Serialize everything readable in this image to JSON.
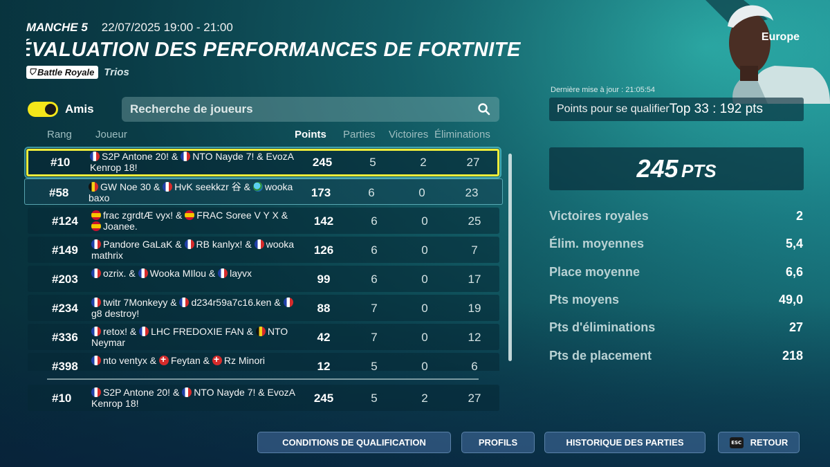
{
  "header": {
    "round": "MANCHE 5",
    "datetime": "22/07/2025 19:00 - 21:00",
    "title": "ÉVALUATION DES PERFORMANCES DE FORTNITE",
    "mode_badge": "Battle Royale",
    "mode_sub": "Trios"
  },
  "friends_toggle": {
    "label": "Amis",
    "on": true
  },
  "search": {
    "placeholder": "Recherche de joueurs"
  },
  "columns": {
    "rank": "Rang",
    "player": "Joueur",
    "points": "Points",
    "matches": "Parties",
    "wins": "Victoires",
    "elims": "Éliminations"
  },
  "rows": [
    {
      "rank": "#10",
      "points": "245",
      "matches": "5",
      "wins": "2",
      "elims": "27",
      "players": [
        {
          "flag": "fr",
          "name": "S2P Antone 20!"
        },
        {
          "flag": "fr",
          "name": "NTO Nayde 7!"
        },
        {
          "flag": "",
          "name": "EvozA Kenrop 18!"
        }
      ]
    },
    {
      "rank": "#58",
      "points": "173",
      "matches": "6",
      "wins": "0",
      "elims": "23",
      "players": [
        {
          "flag": "be",
          "name": "GW Noe 30"
        },
        {
          "flag": "fr",
          "name": "HvK seekkzr 谷"
        },
        {
          "flag": "globe",
          "name": "wooka baxo"
        }
      ]
    },
    {
      "rank": "#124",
      "points": "142",
      "matches": "6",
      "wins": "0",
      "elims": "25",
      "players": [
        {
          "flag": "es",
          "name": "frac zgrdtÆ vyx!"
        },
        {
          "flag": "es",
          "name": "FRAC Soree V Y X"
        },
        {
          "flag": "es",
          "name": "Joanee."
        }
      ]
    },
    {
      "rank": "#149",
      "points": "126",
      "matches": "6",
      "wins": "0",
      "elims": "7",
      "players": [
        {
          "flag": "fr",
          "name": "Pandore GaLaK"
        },
        {
          "flag": "fr",
          "name": "RB kanlyx!"
        },
        {
          "flag": "fr",
          "name": "wooka mathrix"
        }
      ]
    },
    {
      "rank": "#203",
      "points": "99",
      "matches": "6",
      "wins": "0",
      "elims": "17",
      "players": [
        {
          "flag": "fr",
          "name": "ozrix."
        },
        {
          "flag": "fr",
          "name": "Wooka MIlou"
        },
        {
          "flag": "fr",
          "name": "layvx"
        }
      ]
    },
    {
      "rank": "#234",
      "points": "88",
      "matches": "7",
      "wins": "0",
      "elims": "19",
      "players": [
        {
          "flag": "fr",
          "name": "twitr 7Monkeyy"
        },
        {
          "flag": "fr",
          "name": "d234r59a7c16.ken"
        },
        {
          "flag": "fr",
          "name": "g8 destroy!"
        }
      ]
    },
    {
      "rank": "#336",
      "points": "42",
      "matches": "7",
      "wins": "0",
      "elims": "12",
      "players": [
        {
          "flag": "fr",
          "name": "retox!"
        },
        {
          "flag": "fr",
          "name": "LHC FREDOXIE FAN"
        },
        {
          "flag": "be",
          "name": "NTO Neymar"
        }
      ]
    },
    {
      "rank": "#398",
      "points": "12",
      "matches": "5",
      "wins": "0",
      "elims": "6",
      "players": [
        {
          "flag": "fr",
          "name": "nto ventyx"
        },
        {
          "flag": "ch",
          "name": "Feytan"
        },
        {
          "flag": "ch",
          "name": "Rz Minori"
        }
      ]
    }
  ],
  "my_row": {
    "rank": "#10",
    "points": "245",
    "matches": "5",
    "wins": "2",
    "elims": "27",
    "players": [
      {
        "flag": "fr",
        "name": "S2P Antone 20!"
      },
      {
        "flag": "fr",
        "name": "NTO Nayde 7!"
      },
      {
        "flag": "",
        "name": "EvozA Kenrop 18!"
      }
    ]
  },
  "panel": {
    "region": "Europe",
    "updated": "Dernière mise à jour : 21:05:54",
    "qualify_label": "Points pour se qualifier",
    "qualify_value": "Top 33 : 192 pts",
    "total_points": "245",
    "total_unit": "PTS",
    "stats": [
      {
        "label": "Victoires royales",
        "value": "2"
      },
      {
        "label": "Élim. moyennes",
        "value": "5,4"
      },
      {
        "label": "Place moyenne",
        "value": "6,6"
      },
      {
        "label": "Pts moyens",
        "value": "49,0"
      },
      {
        "label": "Pts d'éliminations",
        "value": "27"
      },
      {
        "label": "Pts de placement",
        "value": "218"
      }
    ]
  },
  "buttons": {
    "conditions": "CONDITIONS DE QUALIFICATION",
    "profiles": "PROFILS",
    "history": "HISTORIQUE DES PARTIES",
    "back_key": "ESC",
    "back": "RETOUR"
  },
  "colors": {
    "accent_yellow": "#f1ee3a",
    "panel_bg": "#0a3f4c"
  }
}
